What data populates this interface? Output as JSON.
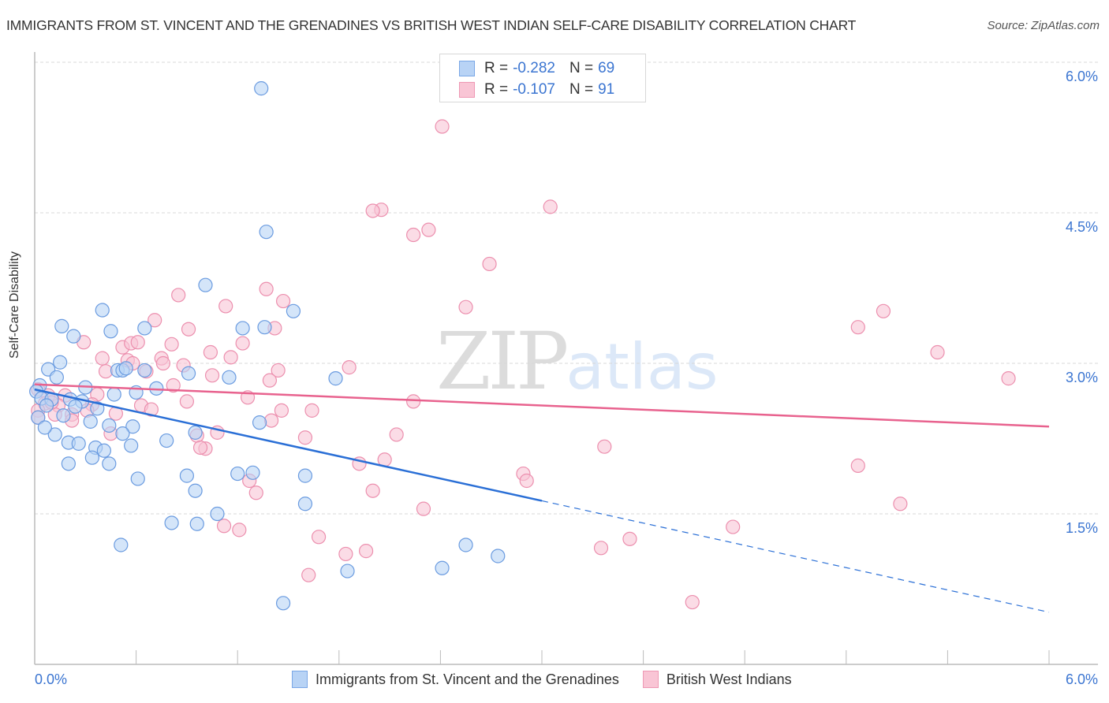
{
  "header": {
    "title": "IMMIGRANTS FROM ST. VINCENT AND THE GRENADINES VS BRITISH WEST INDIAN SELF-CARE DISABILITY CORRELATION CHART",
    "source": "Source: ZipAtlas.com"
  },
  "watermark": {
    "zip": "ZIP",
    "atlas": "atlas"
  },
  "legend": {
    "r_label": "R =",
    "n_label": "N =",
    "series": [
      {
        "r": "-0.282",
        "n": "69"
      },
      {
        "r": "-0.107",
        "n": "91"
      }
    ]
  },
  "colors": {
    "blue_fill": "#b8d3f5",
    "blue_stroke": "#6a9be0",
    "blue_line": "#2a6fd6",
    "pink_fill": "#f9c5d5",
    "pink_stroke": "#ec8fae",
    "pink_line": "#e8628e",
    "tick_text": "#3b75d1",
    "grid": "#d9d9d9"
  },
  "chart_data": {
    "type": "scatter",
    "title": "IMMIGRANTS FROM ST. VINCENT AND THE GRENADINES VS BRITISH WEST INDIAN SELF-CARE DISABILITY CORRELATION CHART",
    "xlabel": "",
    "ylabel": "Self-Care Disability",
    "xlim": [
      0,
      6.0
    ],
    "ylim": [
      0,
      6.2
    ],
    "x_tick_labels": [
      "0.0%",
      "6.0%"
    ],
    "y_ticks": [
      1.5,
      3.0,
      4.5,
      6.0
    ],
    "y_tick_labels": [
      "1.5%",
      "3.0%",
      "4.5%",
      "6.0%"
    ],
    "grid": true,
    "legend_position": "top-center",
    "series": [
      {
        "name": "Immigrants from St. Vincent and the Grenadines",
        "r": -0.282,
        "n": 69,
        "trend": {
          "x0": 0.0,
          "y0": 2.74,
          "x1": 3.0,
          "y1": 1.63,
          "dashed_to_x": 6.0,
          "dashed_to_y": 0.52
        },
        "points": [
          [
            1.34,
            5.74
          ],
          [
            1.37,
            4.31
          ],
          [
            1.01,
            3.78
          ],
          [
            0.4,
            3.53
          ],
          [
            0.16,
            3.37
          ],
          [
            0.65,
            3.35
          ],
          [
            0.45,
            3.32
          ],
          [
            1.23,
            3.35
          ],
          [
            1.36,
            3.36
          ],
          [
            1.53,
            3.52
          ],
          [
            0.23,
            3.27
          ],
          [
            0.08,
            2.94
          ],
          [
            0.15,
            3.01
          ],
          [
            0.49,
            2.93
          ],
          [
            0.52,
            2.93
          ],
          [
            0.65,
            2.93
          ],
          [
            0.54,
            2.95
          ],
          [
            0.91,
            2.9
          ],
          [
            1.15,
            2.86
          ],
          [
            1.78,
            2.85
          ],
          [
            0.13,
            2.86
          ],
          [
            0.03,
            2.78
          ],
          [
            0.3,
            2.76
          ],
          [
            0.72,
            2.75
          ],
          [
            0.6,
            2.71
          ],
          [
            0.01,
            2.72
          ],
          [
            0.04,
            2.65
          ],
          [
            0.1,
            2.64
          ],
          [
            0.21,
            2.64
          ],
          [
            0.28,
            2.62
          ],
          [
            0.07,
            2.58
          ],
          [
            0.24,
            2.57
          ],
          [
            0.37,
            2.55
          ],
          [
            0.02,
            2.46
          ],
          [
            0.17,
            2.48
          ],
          [
            0.33,
            2.42
          ],
          [
            0.44,
            2.38
          ],
          [
            0.58,
            2.37
          ],
          [
            1.33,
            2.41
          ],
          [
            0.12,
            2.29
          ],
          [
            0.52,
            2.3
          ],
          [
            0.95,
            2.31
          ],
          [
            0.2,
            2.21
          ],
          [
            0.26,
            2.2
          ],
          [
            0.78,
            2.23
          ],
          [
            0.36,
            2.16
          ],
          [
            0.57,
            2.18
          ],
          [
            0.41,
            2.13
          ],
          [
            0.34,
            2.06
          ],
          [
            0.2,
            2.0
          ],
          [
            0.44,
            2.0
          ],
          [
            1.29,
            1.91
          ],
          [
            1.2,
            1.9
          ],
          [
            0.9,
            1.88
          ],
          [
            0.61,
            1.85
          ],
          [
            1.6,
            1.88
          ],
          [
            0.95,
            1.73
          ],
          [
            1.6,
            1.6
          ],
          [
            1.08,
            1.5
          ],
          [
            0.81,
            1.41
          ],
          [
            0.96,
            1.4
          ],
          [
            0.51,
            1.19
          ],
          [
            1.85,
            0.93
          ],
          [
            2.41,
            0.96
          ],
          [
            2.55,
            1.19
          ],
          [
            2.74,
            1.08
          ],
          [
            1.47,
            0.61
          ],
          [
            0.06,
            2.36
          ],
          [
            0.47,
            2.69
          ]
        ]
      },
      {
        "name": "British West Indians",
        "r": -0.107,
        "n": 91,
        "trend": {
          "x0": 0.0,
          "y0": 2.79,
          "x1": 6.0,
          "y1": 2.37
        },
        "points": [
          [
            2.41,
            5.36
          ],
          [
            2.05,
            4.53
          ],
          [
            2.0,
            4.52
          ],
          [
            2.24,
            4.28
          ],
          [
            2.33,
            4.33
          ],
          [
            3.05,
            4.56
          ],
          [
            2.69,
            3.99
          ],
          [
            1.37,
            3.74
          ],
          [
            1.47,
            3.62
          ],
          [
            0.85,
            3.68
          ],
          [
            1.13,
            3.57
          ],
          [
            2.55,
            3.56
          ],
          [
            5.02,
            3.52
          ],
          [
            4.87,
            3.36
          ],
          [
            0.71,
            3.43
          ],
          [
            0.91,
            3.34
          ],
          [
            1.42,
            3.35
          ],
          [
            0.29,
            3.21
          ],
          [
            0.52,
            3.16
          ],
          [
            0.57,
            3.2
          ],
          [
            0.61,
            3.21
          ],
          [
            0.81,
            3.19
          ],
          [
            1.23,
            3.2
          ],
          [
            0.75,
            3.05
          ],
          [
            1.04,
            3.11
          ],
          [
            1.16,
            3.06
          ],
          [
            5.34,
            3.11
          ],
          [
            0.4,
            3.05
          ],
          [
            0.55,
            3.03
          ],
          [
            0.58,
            3.0
          ],
          [
            0.76,
            3.0
          ],
          [
            0.88,
            2.98
          ],
          [
            1.86,
            2.96
          ],
          [
            0.42,
            2.92
          ],
          [
            0.66,
            2.92
          ],
          [
            1.44,
            2.93
          ],
          [
            1.05,
            2.88
          ],
          [
            5.76,
            2.85
          ],
          [
            0.82,
            2.78
          ],
          [
            1.39,
            2.83
          ],
          [
            0.02,
            2.74
          ],
          [
            0.08,
            2.68
          ],
          [
            0.18,
            2.68
          ],
          [
            0.37,
            2.69
          ],
          [
            1.26,
            2.66
          ],
          [
            0.9,
            2.62
          ],
          [
            2.24,
            2.62
          ],
          [
            0.06,
            2.6
          ],
          [
            0.14,
            2.58
          ],
          [
            0.34,
            2.59
          ],
          [
            0.63,
            2.58
          ],
          [
            0.02,
            2.53
          ],
          [
            0.12,
            2.49
          ],
          [
            0.22,
            2.49
          ],
          [
            0.31,
            2.53
          ],
          [
            0.69,
            2.54
          ],
          [
            1.46,
            2.53
          ],
          [
            1.64,
            2.53
          ],
          [
            0.48,
            2.5
          ],
          [
            1.4,
            2.43
          ],
          [
            0.02,
            2.46
          ],
          [
            0.45,
            2.3
          ],
          [
            2.14,
            2.29
          ],
          [
            0.96,
            2.28
          ],
          [
            1.6,
            2.26
          ],
          [
            1.01,
            2.15
          ],
          [
            0.98,
            2.16
          ],
          [
            3.37,
            2.17
          ],
          [
            1.92,
            2.0
          ],
          [
            2.07,
            2.04
          ],
          [
            4.87,
            1.98
          ],
          [
            2.89,
            1.9
          ],
          [
            2.91,
            1.83
          ],
          [
            1.27,
            1.83
          ],
          [
            2.0,
            1.73
          ],
          [
            1.31,
            1.71
          ],
          [
            2.3,
            1.55
          ],
          [
            5.12,
            1.6
          ],
          [
            1.12,
            1.38
          ],
          [
            1.21,
            1.34
          ],
          [
            4.13,
            1.37
          ],
          [
            1.68,
            1.27
          ],
          [
            3.52,
            1.25
          ],
          [
            3.35,
            1.16
          ],
          [
            1.96,
            1.13
          ],
          [
            1.84,
            1.1
          ],
          [
            1.62,
            0.89
          ],
          [
            3.89,
            0.62
          ],
          [
            0.22,
            2.43
          ],
          [
            1.08,
            2.31
          ],
          [
            0.1,
            2.61
          ]
        ]
      }
    ]
  },
  "bottom_legend": [
    {
      "label": "Immigrants from St. Vincent and the Grenadines"
    },
    {
      "label": "British West Indians"
    }
  ],
  "axes": {
    "x_min_label": "0.0%",
    "x_max_label": "6.0%",
    "y_tick_labels": [
      "6.0%",
      "4.5%",
      "3.0%",
      "1.5%"
    ]
  }
}
